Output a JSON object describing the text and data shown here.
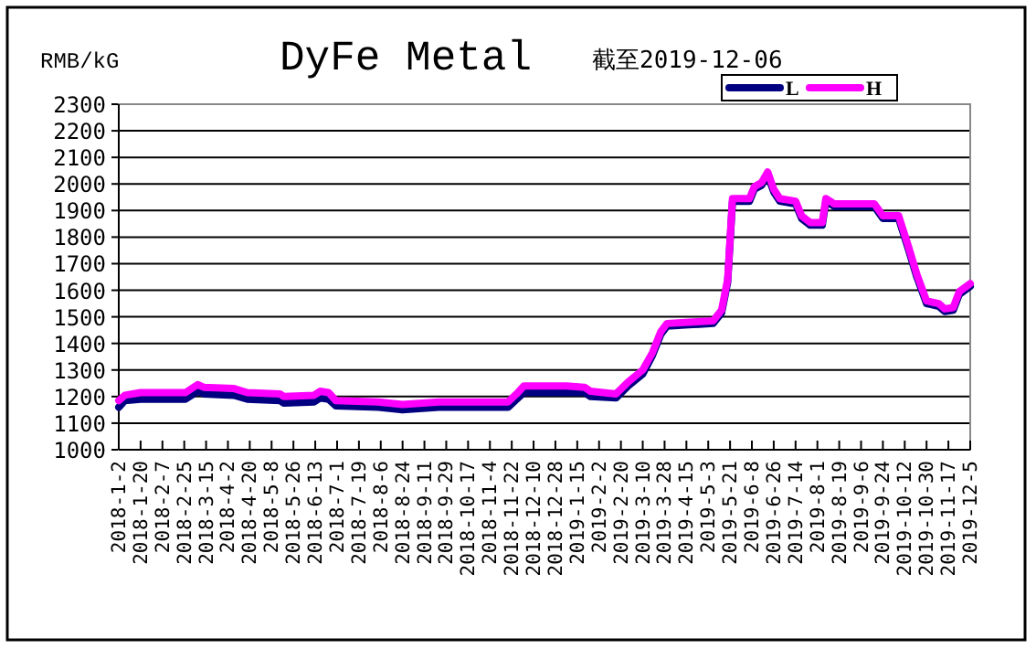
{
  "chart_data": {
    "type": "line",
    "title": "DyFe Metal",
    "subtitle": "截至2019-12-06",
    "ylabel": "RMB/kG",
    "x": [
      "2018-01-02",
      "2018-01-07",
      "2018-01-20",
      "2018-02-26",
      "2018-03-08",
      "2018-03-13",
      "2018-04-07",
      "2018-04-18",
      "2018-05-15",
      "2018-05-18",
      "2018-06-12",
      "2018-06-17",
      "2018-06-24",
      "2018-06-30",
      "2018-08-04",
      "2018-08-24",
      "2018-09-23",
      "2018-11-19",
      "2018-11-26",
      "2018-12-02",
      "2019-01-06",
      "2019-01-21",
      "2019-01-26",
      "2019-02-16",
      "2019-02-26",
      "2019-03-10",
      "2019-03-18",
      "2019-03-25",
      "2019-03-30",
      "2019-04-17",
      "2019-05-07",
      "2019-05-14",
      "2019-05-19",
      "2019-05-23",
      "2019-06-06",
      "2019-06-10",
      "2019-06-16",
      "2019-06-21",
      "2019-06-26",
      "2019-07-01",
      "2019-07-14",
      "2019-07-19",
      "2019-07-26",
      "2019-08-05",
      "2019-08-08",
      "2019-08-15",
      "2019-09-17",
      "2019-09-24",
      "2019-10-07",
      "2019-10-15",
      "2019-10-22",
      "2019-10-30",
      "2019-11-09",
      "2019-11-14",
      "2019-11-21",
      "2019-11-26",
      "2019-12-05"
    ],
    "series": [
      {
        "name": "L",
        "color": "#000080",
        "values": [
          1160,
          1185,
          1190,
          1190,
          1220,
          1210,
          1205,
          1190,
          1185,
          1175,
          1180,
          1195,
          1190,
          1165,
          1160,
          1150,
          1160,
          1160,
          1190,
          1215,
          1215,
          1215,
          1200,
          1195,
          1240,
          1285,
          1355,
          1435,
          1465,
          1470,
          1475,
          1515,
          1630,
          1935,
          1935,
          1980,
          1995,
          2035,
          1970,
          1935,
          1925,
          1870,
          1845,
          1845,
          1935,
          1915,
          1915,
          1870,
          1870,
          1755,
          1650,
          1550,
          1540,
          1520,
          1525,
          1585,
          1615
        ]
      },
      {
        "name": "H",
        "color": "#ff00ff",
        "values": [
          1185,
          1205,
          1215,
          1215,
          1245,
          1235,
          1230,
          1215,
          1210,
          1200,
          1205,
          1220,
          1215,
          1185,
          1180,
          1170,
          1180,
          1180,
          1210,
          1240,
          1240,
          1235,
          1220,
          1210,
          1255,
          1300,
          1365,
          1445,
          1475,
          1480,
          1485,
          1525,
          1640,
          1945,
          1945,
          1990,
          2005,
          2045,
          1980,
          1945,
          1935,
          1880,
          1855,
          1855,
          1945,
          1925,
          1925,
          1880,
          1880,
          1765,
          1660,
          1560,
          1550,
          1530,
          1535,
          1595,
          1625
        ]
      }
    ],
    "xlim": [
      "2018-01-02",
      "2019-12-05"
    ],
    "xticks": [
      {
        "value": "2018-01-02",
        "label": "2018-1-2"
      },
      {
        "value": "2018-01-20",
        "label": "2018-1-20"
      },
      {
        "value": "2018-02-07",
        "label": "2018-2-7"
      },
      {
        "value": "2018-02-25",
        "label": "2018-2-25"
      },
      {
        "value": "2018-03-15",
        "label": "2018-3-15"
      },
      {
        "value": "2018-04-02",
        "label": "2018-4-2"
      },
      {
        "value": "2018-04-20",
        "label": "2018-4-20"
      },
      {
        "value": "2018-05-08",
        "label": "2018-5-8"
      },
      {
        "value": "2018-05-26",
        "label": "2018-5-26"
      },
      {
        "value": "2018-06-13",
        "label": "2018-6-13"
      },
      {
        "value": "2018-07-01",
        "label": "2018-7-1"
      },
      {
        "value": "2018-07-19",
        "label": "2018-7-19"
      },
      {
        "value": "2018-08-06",
        "label": "2018-8-6"
      },
      {
        "value": "2018-08-24",
        "label": "2018-8-24"
      },
      {
        "value": "2018-09-11",
        "label": "2018-9-11"
      },
      {
        "value": "2018-09-29",
        "label": "2018-9-29"
      },
      {
        "value": "2018-10-17",
        "label": "2018-10-17"
      },
      {
        "value": "2018-11-04",
        "label": "2018-11-4"
      },
      {
        "value": "2018-11-22",
        "label": "2018-11-22"
      },
      {
        "value": "2018-12-10",
        "label": "2018-12-10"
      },
      {
        "value": "2018-12-28",
        "label": "2018-12-28"
      },
      {
        "value": "2019-01-15",
        "label": "2019-1-15"
      },
      {
        "value": "2019-02-02",
        "label": "2019-2-2"
      },
      {
        "value": "2019-02-20",
        "label": "2019-2-20"
      },
      {
        "value": "2019-03-10",
        "label": "2019-3-10"
      },
      {
        "value": "2019-03-28",
        "label": "2019-3-28"
      },
      {
        "value": "2019-04-15",
        "label": "2019-4-15"
      },
      {
        "value": "2019-05-03",
        "label": "2019-5-3"
      },
      {
        "value": "2019-05-21",
        "label": "2019-5-21"
      },
      {
        "value": "2019-06-08",
        "label": "2019-6-8"
      },
      {
        "value": "2019-06-26",
        "label": "2019-6-26"
      },
      {
        "value": "2019-07-14",
        "label": "2019-7-14"
      },
      {
        "value": "2019-08-01",
        "label": "2019-8-1"
      },
      {
        "value": "2019-08-19",
        "label": "2019-8-19"
      },
      {
        "value": "2019-09-06",
        "label": "2019-9-6"
      },
      {
        "value": "2019-09-24",
        "label": "2019-9-24"
      },
      {
        "value": "2019-10-12",
        "label": "2019-10-12"
      },
      {
        "value": "2019-10-30",
        "label": "2019-10-30"
      },
      {
        "value": "2019-11-17",
        "label": "2019-11-17"
      },
      {
        "value": "2019-12-05",
        "label": "2019-12-5"
      }
    ],
    "ylim": [
      1000,
      2300
    ],
    "yticks": [
      1000,
      1100,
      1200,
      1300,
      1400,
      1500,
      1600,
      1700,
      1800,
      1900,
      2000,
      2100,
      2200,
      2300
    ],
    "grid": "y",
    "legend": "top right",
    "marker": "none",
    "line_style": "solid"
  }
}
